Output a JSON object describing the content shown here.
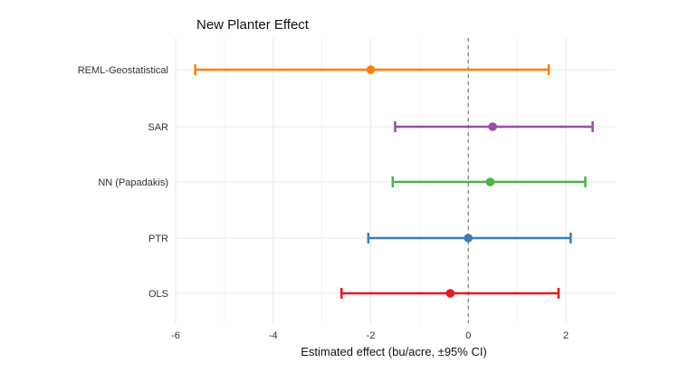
{
  "chart_data": {
    "type": "forest",
    "title": "New Planter Effect",
    "xlabel": "Estimated effect (bu/acre, ±95% CI)",
    "ylabel": "",
    "xlim": [
      -6,
      3
    ],
    "xticks": [
      -6,
      -4,
      -2,
      0,
      2
    ],
    "reference_line": 0,
    "grid": true,
    "rows": [
      {
        "label": "REML-Geostatistical",
        "estimate": -2.0,
        "lower": -5.6,
        "upper": 1.65,
        "color": "#ff7f00"
      },
      {
        "label": "SAR",
        "estimate": 0.5,
        "lower": -1.5,
        "upper": 2.55,
        "color": "#984ea3"
      },
      {
        "label": "NN (Papadakis)",
        "estimate": 0.45,
        "lower": -1.55,
        "upper": 2.4,
        "color": "#4daf4a"
      },
      {
        "label": "PTR",
        "estimate": 0.0,
        "lower": -2.05,
        "upper": 2.1,
        "color": "#377eb8"
      },
      {
        "label": "OLS",
        "estimate": -0.37,
        "lower": -2.6,
        "upper": 1.85,
        "color": "#e41a1c"
      }
    ]
  }
}
